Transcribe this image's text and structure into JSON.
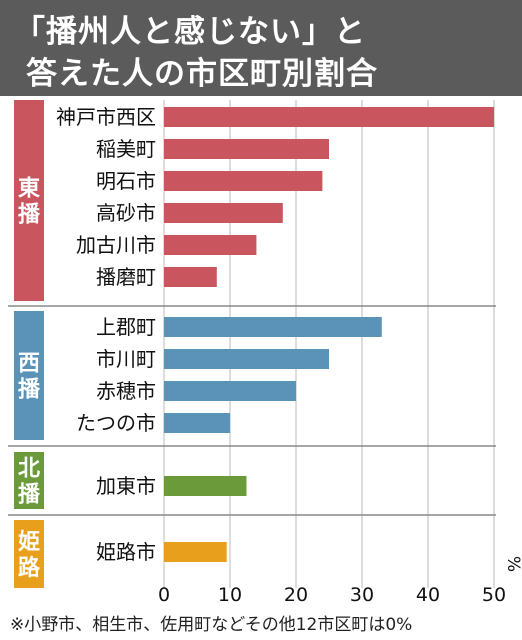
{
  "title": {
    "line1": "「播州人と感じない」と",
    "line2": "答えた人の市区町別割合"
  },
  "footnote": "※小野市、相生市、佐用町などその他12市区町は0%",
  "colors": {
    "東播": "#c9555f",
    "西播": "#5b93b8",
    "北播": "#6a9a3a",
    "姫路": "#e8a01c",
    "title_bg": "#5b5b5b",
    "grid": "#bbbbbb"
  },
  "chart_data": {
    "type": "bar",
    "orientation": "horizontal",
    "unit": "%",
    "xlim": [
      0,
      50
    ],
    "xticks": [
      "0",
      "10",
      "20",
      "30",
      "40",
      "50"
    ],
    "groups": [
      {
        "name": "東播",
        "categories": [
          "神戸市西区",
          "稲美町",
          "明石市",
          "高砂市",
          "加古川市",
          "播磨町"
        ],
        "values": [
          50,
          25,
          24,
          18,
          14,
          8
        ]
      },
      {
        "name": "西播",
        "categories": [
          "上郡町",
          "市川町",
          "赤穂市",
          "たつの市"
        ],
        "values": [
          33,
          25,
          20,
          10
        ]
      },
      {
        "name": "北播",
        "categories": [
          "加東市"
        ],
        "values": [
          12.5
        ]
      },
      {
        "name": "姫路",
        "categories": [
          "姫路市"
        ],
        "values": [
          9.5
        ]
      }
    ]
  }
}
